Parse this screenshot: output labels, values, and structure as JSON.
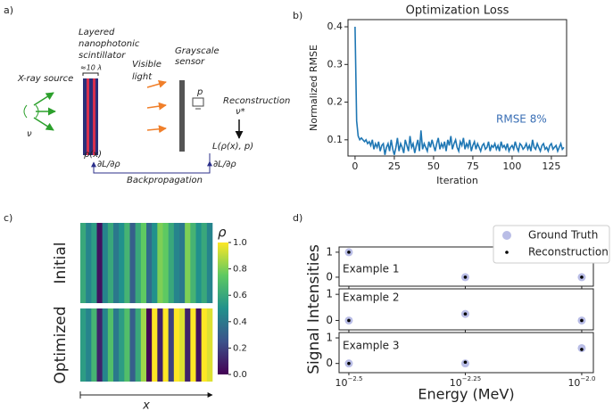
{
  "panel_labels": [
    "a)",
    "b)",
    "c)",
    "d)"
  ],
  "diagram": {
    "source": "X-ray source",
    "source_var": "ν",
    "scintillator": [
      "Layered",
      "nanophotonic",
      "scintillator"
    ],
    "thickness": "≈10 λ",
    "light": [
      "Visible",
      "light"
    ],
    "sensor": [
      "Grayscale",
      "sensor"
    ],
    "pixel": "p",
    "recon": "Reconstruction",
    "recon_var": "ν*",
    "rho": "ρ(x)",
    "grad1": "∂L/∂ρ",
    "loss": "L(ρ(x), p)",
    "grad2": "∂L/∂ρ",
    "backprop": "Backpropagation"
  },
  "chart_data": [
    {
      "type": "line",
      "title": "Optimization Loss",
      "xlabel": "Iteration",
      "ylabel": "Normalized RMSE",
      "annotation": "RMSE 8%",
      "annotation_color": "#3a6fb5",
      "color": "#1f77b4",
      "xlim": [
        -4.5,
        134.7
      ],
      "xticks": [
        0,
        25,
        50,
        75,
        100,
        125
      ],
      "ylim": [
        0.057,
        0.419
      ],
      "yticks": [
        0.1,
        0.2,
        0.3,
        0.4
      ],
      "x": [
        0,
        1,
        2,
        3,
        4,
        5,
        6,
        7,
        8,
        9,
        10,
        11,
        12,
        13,
        14,
        15,
        16,
        17,
        18,
        19,
        20,
        21,
        22,
        23,
        24,
        25,
        26,
        27,
        28,
        29,
        30,
        31,
        32,
        33,
        34,
        35,
        36,
        37,
        38,
        39,
        40,
        41,
        42,
        43,
        44,
        45,
        46,
        47,
        48,
        49,
        50,
        51,
        52,
        53,
        54,
        55,
        56,
        57,
        58,
        59,
        60,
        61,
        62,
        63,
        64,
        65,
        66,
        67,
        68,
        69,
        70,
        71,
        72,
        73,
        74,
        75,
        76,
        77,
        78,
        79,
        80,
        81,
        82,
        83,
        84,
        85,
        86,
        87,
        88,
        89,
        90,
        91,
        92,
        93,
        94,
        95,
        96,
        97,
        98,
        99,
        100,
        101,
        102,
        103,
        104,
        105,
        106,
        107,
        108,
        109,
        110,
        111,
        112,
        113,
        114,
        115,
        116,
        117,
        118,
        119,
        120,
        121,
        122,
        123,
        124,
        125,
        126,
        127,
        128,
        129,
        130,
        131,
        132,
        133
      ],
      "values": [
        0.4,
        0.15,
        0.11,
        0.1,
        0.105,
        0.1,
        0.095,
        0.1,
        0.09,
        0.095,
        0.085,
        0.1,
        0.075,
        0.09,
        0.08,
        0.095,
        0.07,
        0.085,
        0.09,
        0.06,
        0.08,
        0.09,
        0.07,
        0.1,
        0.075,
        0.06,
        0.08,
        0.105,
        0.07,
        0.09,
        0.08,
        0.065,
        0.1,
        0.085,
        0.07,
        0.11,
        0.08,
        0.09,
        0.065,
        0.085,
        0.1,
        0.07,
        0.125,
        0.075,
        0.09,
        0.08,
        0.07,
        0.095,
        0.08,
        0.1,
        0.085,
        0.07,
        0.09,
        0.105,
        0.075,
        0.09,
        0.08,
        0.095,
        0.07,
        0.1,
        0.085,
        0.11,
        0.075,
        0.09,
        0.1,
        0.08,
        0.07,
        0.095,
        0.085,
        0.105,
        0.075,
        0.09,
        0.08,
        0.1,
        0.07,
        0.085,
        0.095,
        0.075,
        0.09,
        0.08,
        0.07,
        0.085,
        0.09,
        0.075,
        0.08,
        0.095,
        0.07,
        0.085,
        0.08,
        0.09,
        0.075,
        0.085,
        0.07,
        0.095,
        0.08,
        0.085,
        0.075,
        0.09,
        0.07,
        0.08,
        0.085,
        0.075,
        0.095,
        0.08,
        0.07,
        0.09,
        0.085,
        0.075,
        0.08,
        0.09,
        0.075,
        0.085,
        0.07,
        0.1,
        0.08,
        0.075,
        0.09,
        0.08,
        0.07,
        0.085,
        0.09,
        0.075,
        0.08,
        0.07,
        0.085,
        0.09,
        0.075,
        0.08,
        0.085,
        0.07,
        0.08,
        0.09,
        0.075,
        0.08
      ]
    },
    {
      "type": "heatmap",
      "xlabel": "x",
      "colorbar_label": "ρ",
      "clim": [
        0,
        1
      ],
      "colormap": [
        "#440154",
        "#3b528b",
        "#21918c",
        "#5ec962",
        "#fde725"
      ],
      "cticks": [
        {
          "value": 0,
          "label": "0.0"
        },
        {
          "value": 0.2,
          "label": "0.2"
        },
        {
          "value": 0.4,
          "label": "0.4"
        },
        {
          "value": 0.6,
          "label": "0.6"
        },
        {
          "value": 0.8,
          "label": "0.8"
        },
        {
          "value": 1,
          "label": "1.0"
        }
      ],
      "rows": [
        {
          "name": "Initial",
          "values": [
            0.6,
            0.45,
            0.55,
            0.05,
            0.45,
            0.6,
            0.4,
            0.5,
            0.65,
            0.3,
            0.6,
            0.75,
            0.35,
            0.5,
            0.8,
            0.75,
            0.6,
            0.45,
            0.4,
            0.8,
            0.65,
            0.5,
            0.6,
            0.45
          ]
        },
        {
          "name": "Optimized",
          "values": [
            0.55,
            0.45,
            0.65,
            0.1,
            0.45,
            0.7,
            0.4,
            0.55,
            0.7,
            0.3,
            0.6,
            0.85,
            0.0,
            1.0,
            0.1,
            1.0,
            0.2,
            1.0,
            0.95,
            0.1,
            1.0,
            0.05,
            1.0,
            0.95
          ]
        }
      ]
    },
    {
      "type": "scatter",
      "xlabel": "Energy (MeV)",
      "ylabel": "Signal Intensities",
      "log_x": true,
      "xlim": [
        -2.521,
        -1.975
      ],
      "ylim": [
        -0.36,
        1.21
      ],
      "yticks": [
        0,
        1
      ],
      "xticks": [
        {
          "value": -2.5,
          "label": "10",
          "exponent": "−2.5"
        },
        {
          "value": -2.25,
          "label": "10",
          "exponent": "−2.25"
        },
        {
          "value": -2.0,
          "label": "10",
          "exponent": "−2.0"
        }
      ],
      "subplots": [
        {
          "title": "Example 1",
          "series": [
            {
              "name": "Ground Truth",
              "color": "#b9bde6",
              "x": [
                -2.5,
                -2.25,
                -2.0
              ],
              "values": [
                1,
                0,
                0
              ]
            },
            {
              "name": "Reconstruction",
              "color": "#000000",
              "x": [
                -2.5,
                -2.25,
                -2.0
              ],
              "values": [
                1,
                0,
                0
              ]
            }
          ]
        },
        {
          "title": "Example 2",
          "series": [
            {
              "name": "Ground Truth",
              "color": "#b9bde6",
              "x": [
                -2.5,
                -2.25,
                -2.0
              ],
              "values": [
                0,
                0.25,
                0
              ]
            },
            {
              "name": "Reconstruction",
              "color": "#000000",
              "x": [
                -2.5,
                -2.25,
                -2.0
              ],
              "values": [
                0,
                0.25,
                0
              ]
            }
          ]
        },
        {
          "title": "Example 3",
          "series": [
            {
              "name": "Ground Truth",
              "color": "#b9bde6",
              "x": [
                -2.5,
                -2.25,
                -2.0
              ],
              "values": [
                0,
                0,
                0.6
              ]
            },
            {
              "name": "Reconstruction",
              "color": "#000000",
              "x": [
                -2.5,
                -2.25,
                -2.0
              ],
              "values": [
                0,
                0.05,
                0.55
              ]
            }
          ]
        }
      ]
    }
  ]
}
